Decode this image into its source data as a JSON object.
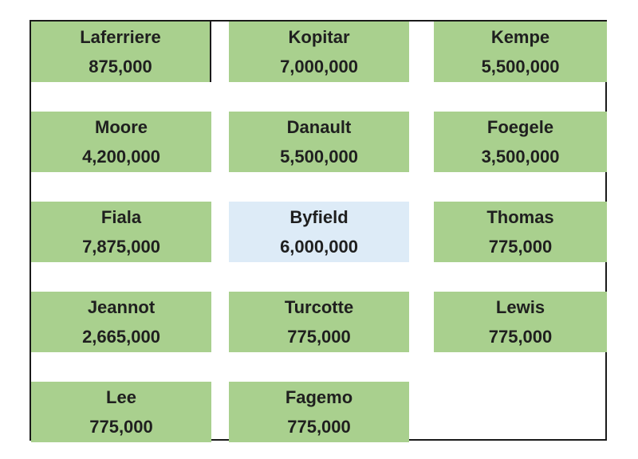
{
  "colors": {
    "green_fill": "#a9d08e",
    "highlight_fill": "#ddebf7",
    "border": "#1a1a1a",
    "text": "#1f1f1f"
  },
  "cells": [
    {
      "name": "Laferriere",
      "value": "875,000"
    },
    {
      "name": "Kopitar",
      "value": "7,000,000"
    },
    {
      "name": "Kempe",
      "value": "5,500,000"
    },
    {
      "name": "Moore",
      "value": "4,200,000"
    },
    {
      "name": "Danault",
      "value": "5,500,000"
    },
    {
      "name": "Foegele",
      "value": "3,500,000"
    },
    {
      "name": "Fiala",
      "value": "7,875,000"
    },
    {
      "name": "Byfield",
      "value": "6,000,000"
    },
    {
      "name": "Thomas",
      "value": "775,000"
    },
    {
      "name": "Jeannot",
      "value": "2,665,000"
    },
    {
      "name": "Turcotte",
      "value": "775,000"
    },
    {
      "name": "Lewis",
      "value": "775,000"
    },
    {
      "name": "Lee",
      "value": "775,000"
    },
    {
      "name": "Fagemo",
      "value": "775,000"
    }
  ]
}
